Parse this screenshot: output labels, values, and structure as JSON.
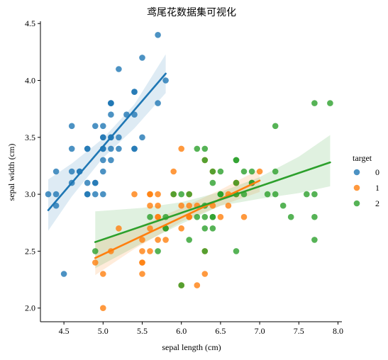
{
  "chart_data": {
    "type": "scatter",
    "title": "鸢尾花数据集可视化",
    "xlabel": "sepal length (cm)",
    "ylabel": "sepal width (cm)",
    "xlim": [
      4.2,
      8.05
    ],
    "ylim": [
      1.88,
      4.52
    ],
    "xticks": [
      4.5,
      5.0,
      5.5,
      6.0,
      6.5,
      7.0,
      7.5,
      8.0
    ],
    "xtick_labels": [
      "4.5",
      "5.0",
      "5.5",
      "6.0",
      "6.5",
      "7.0",
      "7.5",
      "8.0"
    ],
    "yticks": [
      2.0,
      2.5,
      3.0,
      3.5,
      4.0,
      4.5
    ],
    "ytick_labels": [
      "2.0",
      "2.5",
      "3.0",
      "3.5",
      "4.0",
      "4.5"
    ],
    "grid": false,
    "legend": {
      "title": "target",
      "placement": "right"
    },
    "series": [
      {
        "name": "0",
        "color": "#1f77b4",
        "points": [
          [
            5.1,
            3.5
          ],
          [
            4.9,
            3.0
          ],
          [
            4.7,
            3.2
          ],
          [
            4.6,
            3.1
          ],
          [
            5.0,
            3.6
          ],
          [
            5.4,
            3.9
          ],
          [
            4.6,
            3.4
          ],
          [
            5.0,
            3.4
          ],
          [
            4.4,
            2.9
          ],
          [
            4.9,
            3.1
          ],
          [
            5.4,
            3.7
          ],
          [
            4.8,
            3.4
          ],
          [
            4.8,
            3.0
          ],
          [
            4.3,
            3.0
          ],
          [
            5.8,
            4.0
          ],
          [
            5.7,
            4.4
          ],
          [
            5.4,
            3.9
          ],
          [
            5.1,
            3.5
          ],
          [
            5.7,
            3.8
          ],
          [
            5.1,
            3.8
          ],
          [
            5.4,
            3.4
          ],
          [
            5.1,
            3.7
          ],
          [
            4.6,
            3.6
          ],
          [
            5.1,
            3.3
          ],
          [
            4.8,
            3.4
          ],
          [
            5.0,
            3.0
          ],
          [
            5.0,
            3.4
          ],
          [
            5.2,
            3.5
          ],
          [
            5.2,
            3.4
          ],
          [
            4.7,
            3.2
          ],
          [
            4.8,
            3.1
          ],
          [
            5.4,
            3.4
          ],
          [
            5.2,
            4.1
          ],
          [
            5.5,
            4.2
          ],
          [
            4.9,
            3.1
          ],
          [
            5.0,
            3.2
          ],
          [
            5.5,
            3.5
          ],
          [
            4.9,
            3.6
          ],
          [
            4.4,
            3.0
          ],
          [
            5.1,
            3.4
          ],
          [
            5.0,
            3.5
          ],
          [
            4.5,
            2.3
          ],
          [
            4.4,
            3.2
          ],
          [
            5.0,
            3.5
          ],
          [
            5.1,
            3.8
          ],
          [
            4.8,
            3.0
          ],
          [
            5.1,
            3.8
          ],
          [
            4.6,
            3.2
          ],
          [
            5.3,
            3.7
          ],
          [
            5.0,
            3.3
          ]
        ],
        "fit": {
          "x": [
            4.3,
            5.8
          ],
          "y": [
            2.86,
            4.06
          ]
        },
        "ci": {
          "x": [
            4.3,
            4.6,
            5.0,
            5.4,
            5.8
          ],
          "upper": [
            3.13,
            3.27,
            3.49,
            3.79,
            4.23
          ],
          "lower": [
            2.68,
            2.98,
            3.32,
            3.58,
            3.89
          ]
        }
      },
      {
        "name": "1",
        "color": "#ff7f0e",
        "points": [
          [
            7.0,
            3.2
          ],
          [
            6.4,
            3.2
          ],
          [
            6.9,
            3.1
          ],
          [
            5.5,
            2.3
          ],
          [
            6.5,
            2.8
          ],
          [
            5.7,
            2.8
          ],
          [
            6.3,
            3.3
          ],
          [
            4.9,
            2.4
          ],
          [
            6.6,
            2.9
          ],
          [
            5.2,
            2.7
          ],
          [
            5.0,
            2.0
          ],
          [
            5.9,
            3.0
          ],
          [
            6.0,
            2.2
          ],
          [
            6.1,
            2.9
          ],
          [
            5.6,
            2.9
          ],
          [
            6.7,
            3.1
          ],
          [
            5.6,
            3.0
          ],
          [
            5.8,
            2.7
          ],
          [
            6.2,
            2.2
          ],
          [
            5.6,
            2.5
          ],
          [
            5.9,
            3.2
          ],
          [
            6.1,
            2.8
          ],
          [
            6.3,
            2.5
          ],
          [
            6.1,
            2.8
          ],
          [
            6.4,
            2.9
          ],
          [
            6.6,
            3.0
          ],
          [
            6.8,
            2.8
          ],
          [
            6.7,
            3.0
          ],
          [
            6.0,
            2.9
          ],
          [
            5.7,
            2.6
          ],
          [
            5.5,
            2.4
          ],
          [
            5.5,
            2.4
          ],
          [
            5.8,
            2.7
          ],
          [
            6.0,
            2.7
          ],
          [
            5.4,
            3.0
          ],
          [
            6.0,
            3.4
          ],
          [
            6.7,
            3.1
          ],
          [
            6.3,
            2.3
          ],
          [
            5.6,
            3.0
          ],
          [
            5.5,
            2.5
          ],
          [
            5.5,
            2.6
          ],
          [
            6.1,
            3.0
          ],
          [
            5.8,
            2.6
          ],
          [
            5.0,
            2.3
          ],
          [
            5.6,
            2.7
          ],
          [
            5.7,
            3.0
          ],
          [
            5.7,
            2.9
          ],
          [
            6.2,
            2.9
          ],
          [
            5.1,
            2.5
          ],
          [
            5.7,
            2.8
          ]
        ],
        "fit": {
          "x": [
            4.9,
            7.0
          ],
          "y": [
            2.44,
            3.12
          ]
        },
        "ci": {
          "x": [
            4.9,
            5.4,
            6.0,
            6.5,
            7.0
          ],
          "upper": [
            2.58,
            2.7,
            2.88,
            3.04,
            3.22
          ],
          "lower": [
            2.29,
            2.52,
            2.76,
            2.9,
            3.02
          ]
        }
      },
      {
        "name": "2",
        "color": "#2ca02c",
        "points": [
          [
            6.3,
            3.3
          ],
          [
            5.8,
            2.7
          ],
          [
            7.1,
            3.0
          ],
          [
            6.3,
            2.9
          ],
          [
            6.5,
            3.0
          ],
          [
            7.6,
            3.0
          ],
          [
            4.9,
            2.5
          ],
          [
            7.3,
            2.9
          ],
          [
            6.7,
            2.5
          ],
          [
            7.2,
            3.6
          ],
          [
            6.5,
            3.2
          ],
          [
            6.4,
            2.7
          ],
          [
            6.8,
            3.0
          ],
          [
            5.7,
            2.5
          ],
          [
            5.8,
            2.8
          ],
          [
            6.4,
            3.2
          ],
          [
            6.5,
            3.0
          ],
          [
            7.7,
            3.8
          ],
          [
            7.7,
            2.6
          ],
          [
            6.0,
            2.2
          ],
          [
            6.9,
            3.2
          ],
          [
            5.6,
            2.8
          ],
          [
            7.7,
            2.8
          ],
          [
            6.3,
            2.7
          ],
          [
            6.7,
            3.3
          ],
          [
            7.2,
            3.2
          ],
          [
            6.2,
            2.8
          ],
          [
            6.1,
            3.0
          ],
          [
            6.4,
            2.8
          ],
          [
            7.2,
            3.0
          ],
          [
            7.4,
            2.8
          ],
          [
            7.9,
            3.8
          ],
          [
            6.4,
            2.8
          ],
          [
            6.3,
            2.8
          ],
          [
            6.1,
            2.6
          ],
          [
            7.7,
            3.0
          ],
          [
            6.3,
            3.4
          ],
          [
            6.4,
            3.1
          ],
          [
            6.0,
            3.0
          ],
          [
            6.9,
            3.1
          ],
          [
            6.7,
            3.1
          ],
          [
            6.9,
            3.1
          ],
          [
            5.8,
            2.7
          ],
          [
            6.8,
            3.2
          ],
          [
            6.7,
            3.3
          ],
          [
            6.7,
            3.0
          ],
          [
            6.3,
            2.5
          ],
          [
            6.5,
            3.0
          ],
          [
            6.2,
            3.4
          ],
          [
            5.9,
            3.0
          ]
        ],
        "fit": {
          "x": [
            4.9,
            7.9
          ],
          "y": [
            2.58,
            3.28
          ]
        },
        "ci": {
          "x": [
            4.9,
            5.5,
            6.0,
            6.5,
            7.0,
            7.5,
            7.9
          ],
          "upper": [
            2.85,
            2.88,
            2.93,
            3.02,
            3.15,
            3.33,
            3.52
          ],
          "lower": [
            2.35,
            2.57,
            2.74,
            2.9,
            2.96,
            3.01,
            3.07
          ]
        }
      }
    ]
  }
}
